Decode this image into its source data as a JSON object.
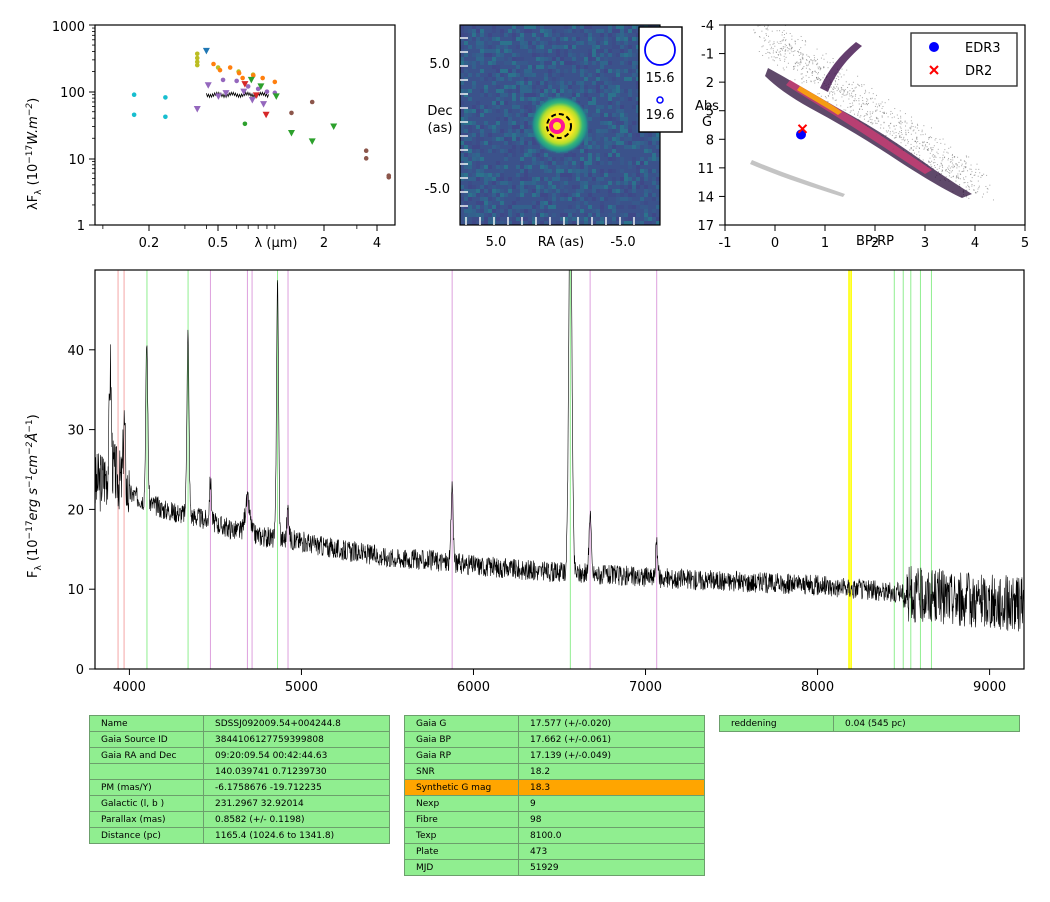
{
  "sed": {
    "ylabel_main": "λF",
    "ylabel_sub": "λ",
    "ylabel_rest": " (10",
    "ylabel_exp": "−17",
    "ylabel_unit": "W.m",
    "ylabel_unit_exp": "−2",
    "ylabel_close": ")",
    "yticks": [
      "1",
      "10",
      "100",
      "1000"
    ],
    "xticks": [
      "0.2",
      "0.5",
      "2",
      "4"
    ],
    "xlabel": "λ (μm)",
    "chart_data": {
      "type": "scatter",
      "xscale": "log",
      "yscale": "log",
      "xlim": [
        0.09,
        5.0
      ],
      "ylim": [
        1,
        1000
      ],
      "series": [
        {
          "color": "#17becf",
          "marker": "dot",
          "points": [
            [
              0.152,
              90
            ],
            [
              0.152,
              45
            ],
            [
              0.231,
              82
            ],
            [
              0.231,
              42
            ]
          ]
        },
        {
          "color": "#bcbd22",
          "marker": "dot",
          "points": [
            [
              0.354,
              370
            ],
            [
              0.354,
              320
            ],
            [
              0.354,
              280
            ],
            [
              0.354,
              250
            ],
            [
              0.468,
              230
            ],
            [
              0.616,
              200
            ],
            [
              0.748,
              180
            ]
          ]
        },
        {
          "color": "#ff7f0e",
          "marker": "dot",
          "points": [
            [
              0.44,
              260
            ],
            [
              0.48,
              210
            ],
            [
              0.55,
              230
            ],
            [
              0.62,
              190
            ],
            [
              0.65,
              160
            ],
            [
              0.75,
              175
            ],
            [
              0.85,
              160
            ],
            [
              1.0,
              140
            ]
          ]
        },
        {
          "color": "#1f77b4",
          "marker": "triangle-down",
          "points": [
            [
              0.4,
              410
            ]
          ]
        },
        {
          "color": "#9467bd",
          "marker": "triangle-down",
          "points": [
            [
              0.354,
              55
            ],
            [
              0.41,
              125
            ],
            [
              0.47,
              85
            ],
            [
              0.52,
              95
            ],
            [
              0.66,
              100
            ],
            [
              0.74,
              75
            ],
            [
              0.86,
              65
            ]
          ]
        },
        {
          "color": "#9467bd",
          "marker": "dot",
          "points": [
            [
              0.5,
              150
            ],
            [
              0.6,
              145
            ],
            [
              0.7,
              120
            ],
            [
              0.8,
              110
            ],
            [
              0.9,
              100
            ],
            [
              1.0,
              96
            ]
          ]
        },
        {
          "color": "#d62728",
          "marker": "triangle-down",
          "points": [
            [
              0.67,
              130
            ],
            [
              0.78,
              88
            ],
            [
              0.89,
              45
            ]
          ]
        },
        {
          "color": "#2ca02c",
          "marker": "triangle-down",
          "points": [
            [
              0.73,
              150
            ],
            [
              0.83,
              120
            ],
            [
              1.02,
              85
            ],
            [
              1.25,
              24
            ],
            [
              1.65,
              18
            ],
            [
              2.2,
              30
            ]
          ]
        },
        {
          "color": "#2ca02c",
          "marker": "dot",
          "points": [
            [
              0.67,
              33
            ]
          ]
        },
        {
          "color": "#8c564b",
          "marker": "dot",
          "points": [
            [
              1.25,
              48
            ],
            [
              1.65,
              70
            ],
            [
              3.4,
              13
            ],
            [
              3.4,
              10
            ],
            [
              4.6,
              5.5
            ],
            [
              4.6,
              5.2
            ]
          ]
        }
      ],
      "model_line": {
        "x_start": 0.4,
        "x_end": 0.92,
        "y": 90
      }
    }
  },
  "image": {
    "ylabel_line1": "Dec",
    "ylabel_line2": "(as)",
    "xlabel": "RA (as)",
    "yticks": [
      "5.0",
      "-5.0"
    ],
    "xticks": [
      "5.0",
      "-5.0"
    ],
    "legend": [
      {
        "label": "15.6"
      },
      {
        "label": "19.6"
      }
    ],
    "colors": {
      "background": "#3b528b",
      "core": "#fde725",
      "halo": "#5ec962",
      "marker": "#ff1493",
      "ring": "#0000ff"
    }
  },
  "cmd": {
    "ylabel_line1": "Abs",
    "ylabel_line2": "G",
    "xlabel": "BP-RP",
    "yticks": [
      "-4",
      "-1",
      "2",
      "5",
      "8",
      "11",
      "14",
      "17"
    ],
    "xticks": [
      "-1",
      "0",
      "1",
      "2",
      "3",
      "4",
      "5"
    ],
    "legend": [
      {
        "label": "EDR3",
        "color": "#0000ff",
        "marker": "dot"
      },
      {
        "label": "DR2",
        "color": "#ff0000",
        "marker": "x"
      }
    ],
    "chart_data": {
      "type": "scatter",
      "xlim": [
        -1,
        5
      ],
      "ylim": [
        17,
        -4
      ],
      "points": [
        {
          "series": "EDR3",
          "x": 0.52,
          "y": 7.5
        },
        {
          "series": "DR2",
          "x": 0.55,
          "y": 6.9
        }
      ]
    }
  },
  "spectrum": {
    "ylabel_pre": "F",
    "ylabel_sub": "λ",
    "ylabel_rest": " (10",
    "ylabel_exp": "−17",
    "ylabel_unit": "erg s",
    "ylabel_unit_exp": "−1",
    "ylabel_cm": "cm",
    "ylabel_cm_exp": "−2",
    "ylabel_ang": "Å",
    "ylabel_ang_exp": "−1",
    "ylabel_close": ")",
    "yticks": [
      "0",
      "10",
      "20",
      "30",
      "40"
    ],
    "xticks": [
      "4000",
      "5000",
      "6000",
      "7000",
      "8000",
      "9000"
    ],
    "chart_data": {
      "type": "line",
      "xlim": [
        3800,
        9200
      ],
      "ylim": [
        0,
        50
      ],
      "continuum": [
        [
          3800,
          23
        ],
        [
          3900,
          25
        ],
        [
          4000,
          22
        ],
        [
          4200,
          20
        ],
        [
          4400,
          19
        ],
        [
          4600,
          17.5
        ],
        [
          4800,
          16.5
        ],
        [
          5000,
          16
        ],
        [
          5200,
          15
        ],
        [
          5500,
          14
        ],
        [
          5800,
          13.5
        ],
        [
          6100,
          12.8
        ],
        [
          6400,
          12.2
        ],
        [
          6600,
          12
        ],
        [
          7000,
          11.5
        ],
        [
          7500,
          11
        ],
        [
          8000,
          10.5
        ],
        [
          8500,
          9.5
        ],
        [
          9000,
          8.5
        ],
        [
          9200,
          8.0
        ]
      ],
      "emission_lines": [
        {
          "center": 3889,
          "peak": 13,
          "width": 6
        },
        {
          "center": 3970,
          "peak": 8,
          "width": 6
        },
        {
          "center": 4101,
          "peak": 20,
          "width": 6
        },
        {
          "center": 4340,
          "peak": 23,
          "width": 6
        },
        {
          "center": 4471,
          "peak": 5,
          "width": 6
        },
        {
          "center": 4686,
          "peak": 4,
          "width": 14
        },
        {
          "center": 4861,
          "peak": 32,
          "width": 6
        },
        {
          "center": 4922,
          "peak": 4,
          "width": 6
        },
        {
          "center": 5876,
          "peak": 10,
          "width": 6
        },
        {
          "center": 6563,
          "peak": 50,
          "width": 9
        },
        {
          "center": 6678,
          "peak": 8,
          "width": 6
        },
        {
          "center": 7065,
          "peak": 4,
          "width": 6
        }
      ],
      "marker_lines": [
        {
          "x": 3934,
          "color": "#f4a6a6"
        },
        {
          "x": 3969,
          "color": "#f4a6a6"
        },
        {
          "x": 4102,
          "color": "#90ee90"
        },
        {
          "x": 4341,
          "color": "#90ee90"
        },
        {
          "x": 4471,
          "color": "#dda0dd"
        },
        {
          "x": 4686,
          "color": "#dda0dd"
        },
        {
          "x": 4713,
          "color": "#dda0dd"
        },
        {
          "x": 4861,
          "color": "#90ee90"
        },
        {
          "x": 4922,
          "color": "#dda0dd"
        },
        {
          "x": 5876,
          "color": "#dda0dd"
        },
        {
          "x": 6563,
          "color": "#90ee90"
        },
        {
          "x": 6678,
          "color": "#dda0dd"
        },
        {
          "x": 7065,
          "color": "#dda0dd"
        },
        {
          "x": 8183,
          "color": "#ffff00"
        },
        {
          "x": 8195,
          "color": "#ffff00"
        },
        {
          "x": 8446,
          "color": "#90ee90"
        },
        {
          "x": 8498,
          "color": "#90ee90"
        },
        {
          "x": 8542,
          "color": "#90ee90"
        },
        {
          "x": 8598,
          "color": "#90ee90"
        },
        {
          "x": 8662,
          "color": "#90ee90"
        }
      ]
    }
  },
  "table1": [
    [
      "Name",
      "SDSSJ092009.54+004244.8"
    ],
    [
      "Gaia Source ID",
      "3844106127759399808"
    ],
    [
      "Gaia RA and Dec",
      "09:20:09.54    00:42:44.63"
    ],
    [
      "",
      "140.039741    0.71239730"
    ],
    [
      "PM (mas/Y)",
      "-6.1758676    -19.712235"
    ],
    [
      "Galactic (l, b )",
      "231.2967    32.92014"
    ],
    [
      "Parallax (mas)",
      "0.8582 (+/- 0.1198)"
    ],
    [
      "Distance (pc)",
      "1165.4 (1024.6 to 1341.8)"
    ]
  ],
  "table2": [
    [
      "Gaia G",
      "17.577 (+/-0.020)"
    ],
    [
      "Gaia BP",
      "17.662 (+/-0.061)"
    ],
    [
      "Gaia RP",
      "17.139 (+/-0.049)"
    ],
    [
      "SNR",
      "18.2"
    ],
    [
      "Synthetic G mag",
      "18.3"
    ],
    [
      "Nexp",
      "9"
    ],
    [
      "Fibre",
      "98"
    ],
    [
      "Texp",
      "8100.0"
    ],
    [
      "Plate",
      "473"
    ],
    [
      "MJD",
      "51929"
    ]
  ],
  "table3": [
    [
      "reddening",
      "0.04 (545 pc)"
    ]
  ],
  "highlight_row": 4
}
